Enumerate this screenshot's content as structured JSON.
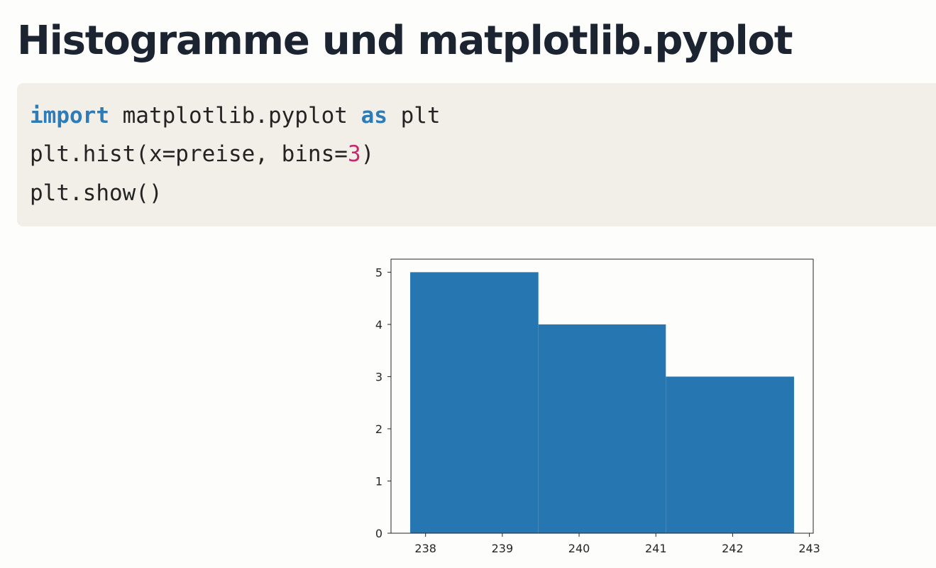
{
  "slide": {
    "title": "Histogramme und matplotlib.pyplot"
  },
  "code": {
    "line1": {
      "kw1": "import",
      "mid": " matplotlib.pyplot ",
      "kw2": "as",
      "tail": " plt"
    },
    "line2": {
      "pre": "plt.hist(x=preise, bins=",
      "num": "3",
      "post": ")"
    },
    "line3": {
      "text": "plt.show()"
    }
  },
  "colors": {
    "bar": "#2677b1",
    "keyword": "#2f7bb5",
    "number": "#c8286f",
    "code_background": "#f2efe8",
    "title": "#1c2432"
  },
  "chart_data": {
    "type": "bar",
    "histogram": true,
    "bin_edges": [
      237.8,
      239.47,
      241.13,
      242.8
    ],
    "values": [
      5,
      4,
      3
    ],
    "xlim": [
      237.55,
      243.05
    ],
    "ylim": [
      0,
      5.25
    ],
    "xticks": [
      238,
      239,
      240,
      241,
      242,
      243
    ],
    "yticks": [
      0,
      1,
      2,
      3,
      4,
      5
    ],
    "title": "",
    "xlabel": "",
    "ylabel": "",
    "grid": false,
    "legend": "none"
  }
}
